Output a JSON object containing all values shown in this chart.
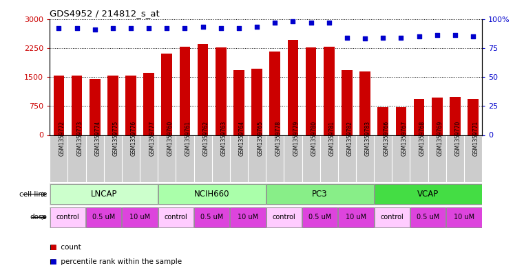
{
  "title": "GDS4952 / 214812_s_at",
  "samples": [
    "GSM1359772",
    "GSM1359773",
    "GSM1359774",
    "GSM1359775",
    "GSM1359776",
    "GSM1359777",
    "GSM1359760",
    "GSM1359761",
    "GSM1359762",
    "GSM1359763",
    "GSM1359764",
    "GSM1359765",
    "GSM1359778",
    "GSM1359779",
    "GSM1359780",
    "GSM1359781",
    "GSM1359782",
    "GSM1359783",
    "GSM1359766",
    "GSM1359767",
    "GSM1359768",
    "GSM1359769",
    "GSM1359770",
    "GSM1359771"
  ],
  "bar_values": [
    1540,
    1540,
    1450,
    1530,
    1530,
    1600,
    2100,
    2280,
    2350,
    2260,
    1680,
    1720,
    2150,
    2460,
    2270,
    2290,
    1670,
    1640,
    720,
    720,
    940,
    960,
    980,
    930
  ],
  "percentile_ranks": [
    92,
    92,
    91,
    92,
    92,
    92,
    92,
    92,
    93,
    92,
    92,
    93,
    97,
    98,
    97,
    97,
    84,
    83,
    84,
    84,
    85,
    86,
    86,
    85
  ],
  "bar_color": "#cc0000",
  "dot_color": "#0000cc",
  "ylim_left": [
    0,
    3000
  ],
  "ylim_right": [
    0,
    100
  ],
  "yticks_left": [
    0,
    750,
    1500,
    2250,
    3000
  ],
  "yticks_right": [
    0,
    25,
    50,
    75,
    100
  ],
  "cell_lines": [
    {
      "name": "LNCAP",
      "start": 0,
      "end": 6,
      "color": "#ccffcc"
    },
    {
      "name": "NCIH660",
      "start": 6,
      "end": 12,
      "color": "#aaffaa"
    },
    {
      "name": "PC3",
      "start": 12,
      "end": 18,
      "color": "#88ee88"
    },
    {
      "name": "VCAP",
      "start": 18,
      "end": 24,
      "color": "#44dd44"
    }
  ],
  "doses": [
    {
      "label": "control",
      "start": 0,
      "end": 2,
      "color": "#ffccff"
    },
    {
      "label": "0.5 uM",
      "start": 2,
      "end": 4,
      "color": "#ee44ee"
    },
    {
      "label": "10 uM",
      "start": 4,
      "end": 6,
      "color": "#ee44ee"
    },
    {
      "label": "control",
      "start": 6,
      "end": 8,
      "color": "#ffccff"
    },
    {
      "label": "0.5 uM",
      "start": 8,
      "end": 10,
      "color": "#ee44ee"
    },
    {
      "label": "10 uM",
      "start": 10,
      "end": 12,
      "color": "#ee44ee"
    },
    {
      "label": "control",
      "start": 12,
      "end": 14,
      "color": "#ffccff"
    },
    {
      "label": "0.5 uM",
      "start": 14,
      "end": 16,
      "color": "#ee44ee"
    },
    {
      "label": "10 uM",
      "start": 16,
      "end": 18,
      "color": "#ee44ee"
    },
    {
      "label": "control",
      "start": 18,
      "end": 20,
      "color": "#ffccff"
    },
    {
      "label": "0.5 uM",
      "start": 20,
      "end": 22,
      "color": "#ee44ee"
    },
    {
      "label": "10 uM",
      "start": 22,
      "end": 24,
      "color": "#ee44ee"
    }
  ],
  "xtick_bg_color": "#cccccc",
  "legend_count_color": "#cc0000",
  "legend_dot_color": "#0000cc",
  "bg_color": "#ffffff",
  "axis_label_color_left": "#cc0000",
  "axis_label_color_right": "#0000cc"
}
